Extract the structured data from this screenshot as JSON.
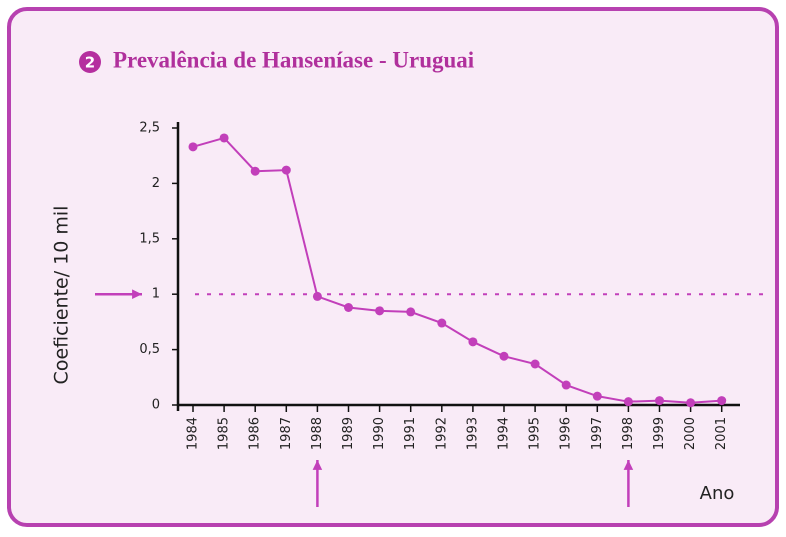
{
  "chart_data": {
    "type": "line",
    "badge": "2",
    "title": "Prevalência de Hanseníase - Uruguai",
    "ylabel": "Coeficiente/ 10 mil",
    "xlabel": "Ano",
    "categories": [
      "1984",
      "1985",
      "1986",
      "1987",
      "1988",
      "1989",
      "1990",
      "1991",
      "1992",
      "1993",
      "1994",
      "1995",
      "1996",
      "1997",
      "1998",
      "1999",
      "2000",
      "2001"
    ],
    "series": [
      {
        "color": "#c23fba",
        "values": [
          2.33,
          2.41,
          2.11,
          2.12,
          0.98,
          0.88,
          0.85,
          0.84,
          0.74,
          0.57,
          0.44,
          0.37,
          0.18,
          0.08,
          0.03,
          0.04,
          0.02,
          0.04
        ]
      }
    ],
    "ylim": [
      0,
      2.5
    ],
    "yticks": [
      0,
      {
        "value": 0.5,
        "label": "0,5"
      },
      1,
      {
        "value": 1.5,
        "label": "1,5"
      },
      2,
      {
        "value": 2.5,
        "label": "2,5"
      }
    ],
    "reference_line": 1
  }
}
